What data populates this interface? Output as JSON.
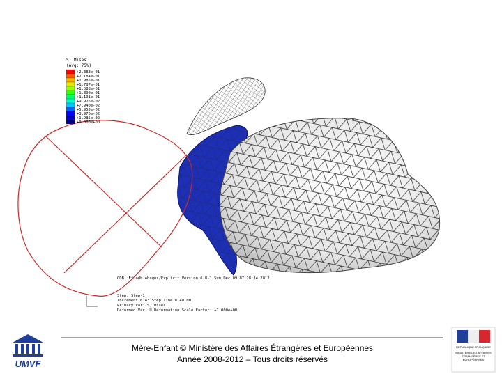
{
  "simulation": {
    "legend_title": "S, Mises",
    "legend_subtitle": "(Avg: 75%)",
    "legend_entries": [
      {
        "label": "+2.383e-01",
        "color": "#ff0000"
      },
      {
        "label": "+2.184e-01",
        "color": "#ff5a00"
      },
      {
        "label": "+1.985e-01",
        "color": "#ffb400"
      },
      {
        "label": "+1.787e-01",
        "color": "#e6e600"
      },
      {
        "label": "+1.588e-01",
        "color": "#96ff00"
      },
      {
        "label": "+1.390e-01",
        "color": "#32ff00"
      },
      {
        "label": "+1.191e-01",
        "color": "#00ff64"
      },
      {
        "label": "+9.926e-02",
        "color": "#00ffc8"
      },
      {
        "label": "+7.940e-02",
        "color": "#00c8ff"
      },
      {
        "label": "+5.955e-02",
        "color": "#0064ff"
      },
      {
        "label": "+3.970e-02",
        "color": "#0000ff"
      },
      {
        "label": "+1.985e-02",
        "color": "#0000c8"
      },
      {
        "label": "+0.000e+00",
        "color": "#00008c"
      }
    ],
    "odb_line": "ODB: Ef.odb    Abaqus/Explicit Version 6.8-1    Sun Dec 09 07:28:14 2012",
    "step_lines": [
      "Step: Step-1",
      "Increment    614: Step Time =    40.00",
      "Primary Var: S, Mises",
      "Deformed Var: U   Deformation Scale Factor: +1.000e+00"
    ]
  },
  "footer": {
    "line1": "Mère-Enfant © Ministère des Affaires Étrangères et Européennes",
    "line2": "Année 2008-2012 – Tous droits réservés"
  },
  "logo_left": "UMVF",
  "logo_right": {
    "line1": "RÉPUBLIQUE FRANÇAISE",
    "line2": "MINISTÈRE DES AFFAIRES ÉTRANGÈRES ET EUROPÉENNES"
  }
}
